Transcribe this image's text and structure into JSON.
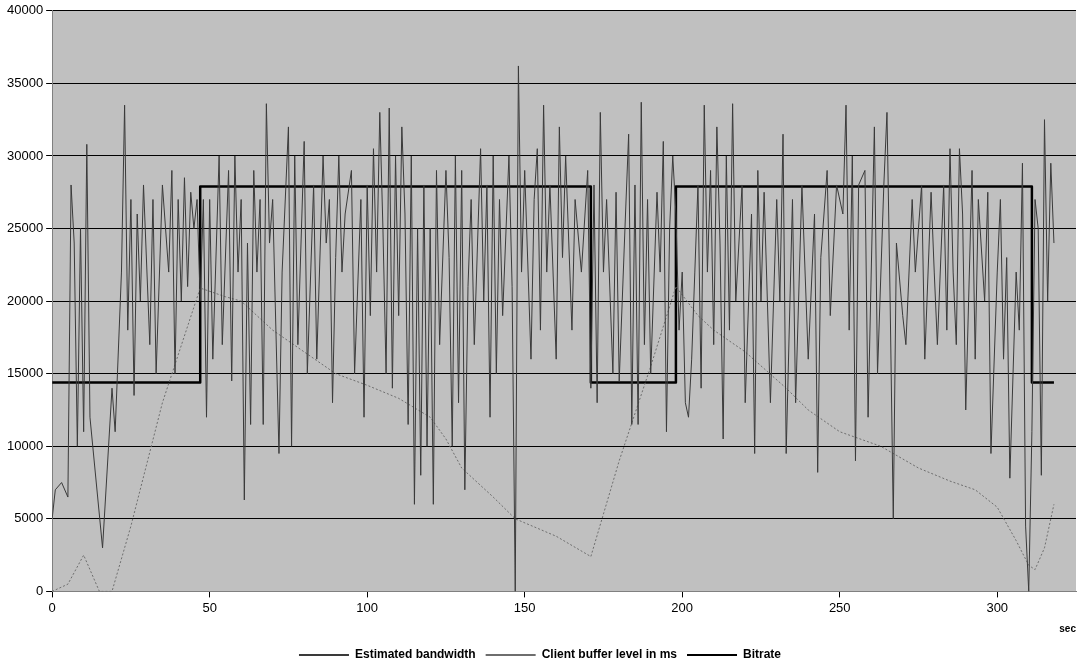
{
  "chart_data": {
    "type": "line",
    "xlabel": "sec",
    "xlim": [
      0,
      325
    ],
    "xticks": [
      0,
      50,
      100,
      150,
      200,
      250,
      300
    ],
    "ylim": [
      0,
      40000
    ],
    "yticks": [
      0,
      5000,
      10000,
      15000,
      20000,
      25000,
      30000,
      35000,
      40000
    ],
    "grid": "y",
    "legend": "bottom",
    "marker": "none",
    "series": [
      {
        "name": "Estimated bandwidth",
        "color": "#3a3a3a",
        "line_style": "solid",
        "x": [
          0,
          1,
          3,
          5,
          6,
          7,
          8,
          9,
          10,
          11,
          12,
          16,
          19,
          20,
          22,
          23,
          24,
          25,
          26,
          27,
          28,
          29,
          31,
          32,
          33,
          35,
          37,
          38,
          39,
          40,
          41,
          42,
          43,
          44,
          45,
          46,
          47,
          48,
          49,
          50,
          51,
          53,
          54,
          56,
          57,
          58,
          59,
          60,
          61,
          62,
          63,
          64,
          65,
          66,
          67,
          68,
          69,
          70,
          72,
          73,
          75,
          76,
          77,
          78,
          80,
          81,
          83,
          84,
          86,
          87,
          88,
          89,
          90,
          91,
          92,
          93,
          95,
          96,
          98,
          99,
          100,
          101,
          102,
          103,
          104,
          105,
          106,
          107,
          108,
          109,
          110,
          111,
          112,
          113,
          114,
          115,
          116,
          117,
          118,
          119,
          120,
          121,
          122,
          123,
          125,
          126,
          127,
          128,
          129,
          130,
          131,
          132,
          133,
          134,
          136,
          137,
          138,
          139,
          140,
          141,
          142,
          143,
          145,
          146,
          147,
          148,
          149,
          150,
          152,
          153,
          154,
          155,
          156,
          157,
          158,
          160,
          161,
          162,
          163,
          165,
          166,
          168,
          170,
          171,
          172,
          173,
          174,
          175,
          176,
          178,
          179,
          180,
          182,
          183,
          184,
          185,
          186,
          187,
          188,
          189,
          190,
          192,
          193,
          194,
          195,
          196,
          197,
          198,
          199,
          200,
          201,
          202,
          203,
          204,
          205,
          206,
          207,
          208,
          209,
          210,
          211,
          212,
          213,
          214,
          215,
          216,
          217,
          219,
          220,
          222,
          223,
          224,
          225,
          226,
          228,
          230,
          231,
          232,
          233,
          235,
          236,
          238,
          240,
          242,
          243,
          244,
          246,
          247,
          249,
          251,
          252,
          253,
          254,
          255,
          256,
          258,
          259,
          261,
          262,
          264,
          265,
          266,
          267,
          268,
          270,
          271,
          273,
          274,
          276,
          277,
          279,
          280,
          281,
          283,
          284,
          285,
          286,
          287,
          288,
          289,
          290,
          292,
          293,
          294,
          296,
          297,
          298,
          300,
          301,
          302,
          303,
          304,
          306,
          307,
          308,
          309,
          310,
          311,
          312,
          313,
          314,
          315,
          316,
          317,
          318
        ],
        "values": [
          5000,
          7000,
          7500,
          6500,
          28000,
          24000,
          10000,
          25000,
          11000,
          30800,
          12000,
          3000,
          14000,
          11000,
          22000,
          33500,
          18000,
          27000,
          13500,
          26000,
          20000,
          28000,
          17000,
          27000,
          15000,
          28000,
          22000,
          29000,
          15000,
          27000,
          20000,
          28500,
          21000,
          27500,
          25000,
          27000,
          20000,
          27000,
          12000,
          27000,
          16000,
          30000,
          17000,
          29000,
          14500,
          30000,
          22000,
          27000,
          6300,
          24000,
          11500,
          29000,
          22000,
          27000,
          11500,
          33600,
          24000,
          27000,
          9500,
          22000,
          32000,
          10000,
          30000,
          17000,
          31000,
          15000,
          28000,
          16000,
          30000,
          24000,
          27000,
          13000,
          23000,
          30000,
          22000,
          26000,
          29000,
          15000,
          27000,
          12000,
          28000,
          19000,
          30500,
          22000,
          33000,
          25000,
          15000,
          33300,
          14000,
          30000,
          19000,
          32000,
          26000,
          11500,
          30000,
          6000,
          25000,
          8000,
          28000,
          10000,
          25000,
          6000,
          29000,
          17000,
          29000,
          23000,
          10000,
          30000,
          13000,
          29000,
          7000,
          21000,
          27000,
          17000,
          30500,
          20000,
          28000,
          12000,
          30000,
          15000,
          27000,
          19000,
          30000,
          21000,
          0,
          36200,
          22000,
          29000,
          16000,
          27000,
          30500,
          18000,
          33500,
          22000,
          28000,
          16000,
          32000,
          23000,
          30000,
          18000,
          27000,
          22000,
          29000,
          14000,
          28000,
          13000,
          33000,
          22000,
          27000,
          15000,
          27500,
          14500,
          26000,
          31500,
          11500,
          28000,
          11500,
          33700,
          17000,
          27000,
          15000,
          27500,
          22000,
          31000,
          11000,
          25000,
          30000,
          26000,
          18000,
          22000,
          13000,
          12000,
          16000,
          22000,
          28000,
          14000,
          33500,
          22000,
          29000,
          17000,
          32000,
          24000,
          10500,
          30000,
          18000,
          33600,
          20000,
          28000,
          13000,
          26000,
          9500,
          29000,
          20000,
          27500,
          13000,
          27000,
          20000,
          31500,
          9500,
          27000,
          13000,
          28000,
          16000,
          26000,
          8200,
          23000,
          29000,
          19000,
          28000,
          26000,
          33500,
          18000,
          30000,
          9000,
          28000,
          29000,
          12000,
          32000,
          15000,
          28000,
          33000,
          20000,
          5000,
          24000,
          19000,
          17000,
          27000,
          22000,
          28000,
          16000,
          27500,
          22000,
          17000,
          28000,
          18000,
          30500,
          22000,
          17000,
          30500,
          26000,
          12500,
          29000,
          16000,
          27000,
          20000,
          27500,
          9500,
          22000,
          27000,
          16000,
          23000,
          7800,
          22000,
          18000,
          29500,
          4500,
          0,
          11000,
          27000,
          25000,
          8000,
          32500,
          20000,
          29500,
          24000
        ]
      },
      {
        "name": "Client buffer level in ms",
        "color": "#6e6e6e",
        "line_style": "dotted",
        "x": [
          0,
          5,
          10,
          15,
          19,
          25,
          35,
          47,
          55,
          60,
          70,
          80,
          90,
          100,
          110,
          120,
          125,
          130,
          140,
          147,
          160,
          171,
          180,
          190,
          198,
          205,
          210,
          220,
          233,
          240,
          250,
          263,
          275,
          285,
          293,
          300,
          306,
          310,
          312,
          315,
          318
        ],
        "values": [
          0,
          500,
          2500,
          0,
          0,
          4500,
          13000,
          20900,
          20300,
          20000,
          18000,
          16500,
          15000,
          14200,
          13300,
          12000,
          10500,
          8500,
          6500,
          5000,
          3800,
          2400,
          9000,
          15500,
          21000,
          19000,
          18000,
          16500,
          14000,
          12500,
          11000,
          10000,
          8500,
          7600,
          7000,
          5800,
          3500,
          1800,
          1500,
          3000,
          6000
        ]
      },
      {
        "name": "Bitrate",
        "type": "step",
        "color": "#000000",
        "line_style": "solid",
        "x": [
          0,
          47,
          171,
          198,
          311,
          318
        ],
        "values": [
          14400,
          27900,
          14400,
          27900,
          14400,
          14400
        ]
      }
    ]
  }
}
